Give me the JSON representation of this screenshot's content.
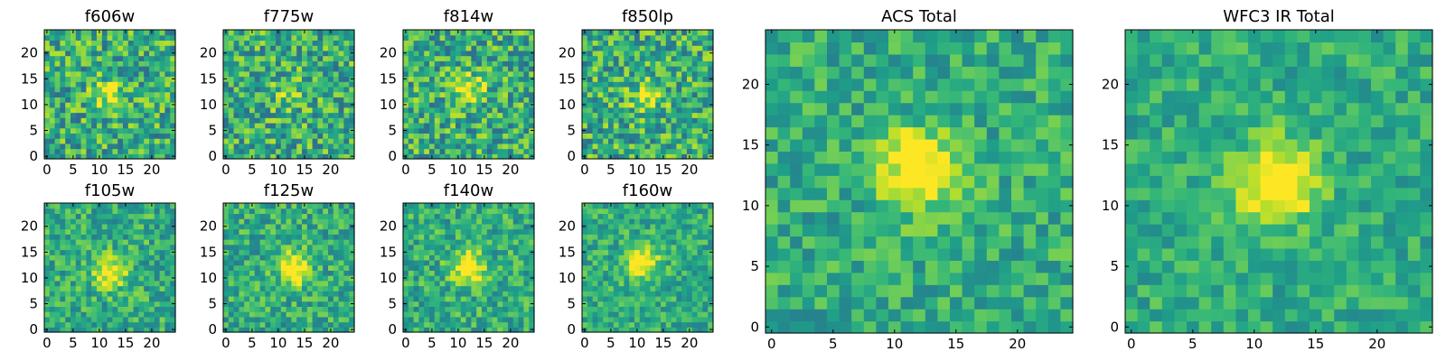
{
  "chart_data": [
    {
      "type": "heatmap",
      "title": "f606w",
      "xlim": [
        0,
        24
      ],
      "ylim": [
        0,
        24
      ],
      "xticks": [
        "0",
        "5",
        "10",
        "15",
        "20"
      ],
      "yticks": [
        "0",
        "5",
        "10",
        "15",
        "20"
      ],
      "grid_size": 25,
      "colormap": "viridis",
      "noise": 0.55,
      "source": {
        "x": 12,
        "y": 12,
        "strength": 0.3
      },
      "seed": 11
    },
    {
      "type": "heatmap",
      "title": "f775w",
      "xlim": [
        0,
        24
      ],
      "ylim": [
        0,
        24
      ],
      "xticks": [
        "0",
        "5",
        "10",
        "15",
        "20"
      ],
      "yticks": [
        "0",
        "5",
        "10",
        "15",
        "20"
      ],
      "grid_size": 25,
      "colormap": "viridis",
      "noise": 0.55,
      "source": {
        "x": 12,
        "y": 12,
        "strength": 0.2
      },
      "seed": 23
    },
    {
      "type": "heatmap",
      "title": "f814w",
      "xlim": [
        0,
        24
      ],
      "ylim": [
        0,
        24
      ],
      "xticks": [
        "0",
        "5",
        "10",
        "15",
        "20"
      ],
      "yticks": [
        "0",
        "5",
        "10",
        "15",
        "20"
      ],
      "grid_size": 25,
      "colormap": "viridis",
      "noise": 0.55,
      "source": {
        "x": 12,
        "y": 13,
        "strength": 0.35
      },
      "seed": 37
    },
    {
      "type": "heatmap",
      "title": "f850lp",
      "xlim": [
        0,
        24
      ],
      "ylim": [
        0,
        24
      ],
      "xticks": [
        "0",
        "5",
        "10",
        "15",
        "20"
      ],
      "yticks": [
        "0",
        "5",
        "10",
        "15",
        "20"
      ],
      "grid_size": 25,
      "colormap": "viridis",
      "noise": 0.55,
      "source": {
        "x": 12,
        "y": 12,
        "strength": 0.3
      },
      "seed": 41
    },
    {
      "type": "heatmap",
      "title": "f105w",
      "xlim": [
        0,
        24
      ],
      "ylim": [
        0,
        24
      ],
      "xticks": [
        "0",
        "5",
        "10",
        "15",
        "20"
      ],
      "yticks": [
        "0",
        "5",
        "10",
        "15",
        "20"
      ],
      "grid_size": 25,
      "colormap": "viridis",
      "noise": 0.4,
      "source": {
        "x": 12,
        "y": 11,
        "strength": 0.45
      },
      "seed": 53
    },
    {
      "type": "heatmap",
      "title": "f125w",
      "xlim": [
        0,
        24
      ],
      "ylim": [
        0,
        24
      ],
      "xticks": [
        "0",
        "5",
        "10",
        "15",
        "20"
      ],
      "yticks": [
        "0",
        "5",
        "10",
        "15",
        "20"
      ],
      "grid_size": 25,
      "colormap": "viridis",
      "noise": 0.4,
      "source": {
        "x": 13,
        "y": 12,
        "strength": 0.5
      },
      "seed": 67
    },
    {
      "type": "heatmap",
      "title": "f140w",
      "xlim": [
        0,
        24
      ],
      "ylim": [
        0,
        24
      ],
      "xticks": [
        "0",
        "5",
        "10",
        "15",
        "20"
      ],
      "yticks": [
        "0",
        "5",
        "10",
        "15",
        "20"
      ],
      "grid_size": 25,
      "colormap": "viridis",
      "noise": 0.4,
      "source": {
        "x": 12,
        "y": 12,
        "strength": 0.5
      },
      "seed": 79
    },
    {
      "type": "heatmap",
      "title": "f160w",
      "xlim": [
        0,
        24
      ],
      "ylim": [
        0,
        24
      ],
      "xticks": [
        "0",
        "5",
        "10",
        "15",
        "20"
      ],
      "yticks": [
        "0",
        "5",
        "10",
        "15",
        "20"
      ],
      "grid_size": 25,
      "colormap": "viridis",
      "noise": 0.35,
      "source": {
        "x": 11,
        "y": 13,
        "strength": 0.5
      },
      "seed": 83
    },
    {
      "type": "heatmap",
      "title": "ACS Total",
      "xlim": [
        0,
        24
      ],
      "ylim": [
        0,
        24
      ],
      "xticks": [
        "0",
        "5",
        "10",
        "15",
        "20"
      ],
      "yticks": [
        "0",
        "5",
        "10",
        "15",
        "20"
      ],
      "grid_size": 25,
      "colormap": "viridis",
      "noise": 0.35,
      "source": {
        "x": 12,
        "y": 13,
        "strength": 0.55
      },
      "seed": 97
    },
    {
      "type": "heatmap",
      "title": "WFC3 IR Total",
      "xlim": [
        0,
        24
      ],
      "ylim": [
        0,
        24
      ],
      "xticks": [
        "0",
        "5",
        "10",
        "15",
        "20"
      ],
      "yticks": [
        "0",
        "5",
        "10",
        "15",
        "20"
      ],
      "grid_size": 25,
      "colormap": "viridis",
      "noise": 0.3,
      "source": {
        "x": 12,
        "y": 12,
        "strength": 0.6
      },
      "seed": 101
    }
  ]
}
